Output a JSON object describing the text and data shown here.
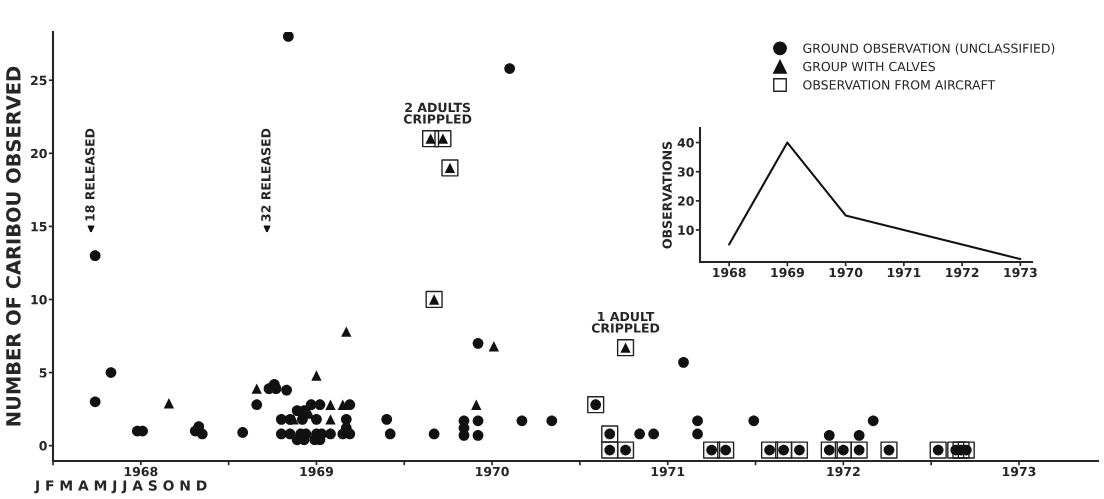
{
  "chart_data": [
    {
      "type": "scatter",
      "ylabel": "NUMBER OF CARIBOU OBSERVED",
      "xlim": [
        1968,
        1973.95
      ],
      "ylim": [
        -1.05,
        28.3
      ],
      "xticks": [
        {
          "value": 1968,
          "label": null
        },
        {
          "value": 1968.5,
          "label": "1968"
        },
        {
          "value": 1969,
          "label": null
        },
        {
          "value": 1969.5,
          "label": "1969"
        },
        {
          "value": 1970,
          "label": null
        },
        {
          "value": 1970.5,
          "label": "1970"
        },
        {
          "value": 1971,
          "label": null
        },
        {
          "value": 1971.5,
          "label": "1971"
        },
        {
          "value": 1972,
          "label": null
        },
        {
          "value": 1972.5,
          "label": "1972"
        },
        {
          "value": 1973,
          "label": null
        },
        {
          "value": 1973.5,
          "label": "1973"
        }
      ],
      "yticks": [
        0,
        5,
        10,
        15,
        20,
        25
      ],
      "grid": false,
      "legend": "top right",
      "series": [
        {
          "name": "GROUND OBSERVATION (UNCLASSIFIED)",
          "color": "#111111",
          "marker": "circle",
          "x": [
            1968.24,
            1968.33,
            1968.24,
            1968.48,
            1968.51,
            1968.81,
            1968.83,
            1968.85,
            1969.08,
            1969.16,
            1969.23,
            1969.26,
            1969.27,
            1969.33,
            1969.34,
            1969.3,
            1969.35,
            1969.42,
            1969.5,
            1969.67,
            1969.9,
            1969.39,
            1969.43,
            1969.3,
            1969.35,
            1969.41,
            1969.44,
            1969.5,
            1969.53,
            1969.58,
            1969.65,
            1969.69,
            1969.92,
            1969.39,
            1969.43,
            1969.49,
            1969.52,
            1969.47,
            1969.52,
            1969.69,
            1969.67,
            1970.17,
            1970.34,
            1970.34,
            1970.34,
            1970.42,
            1970.42,
            1970.42,
            1970.6,
            1970.67,
            1970.84,
            1971.59,
            1971.34,
            1971.42,
            1971.67,
            1971.67,
            1971.99,
            1972.42,
            1972.59,
            1972.67,
            1971.09,
            1971.17,
            1971.17,
            1971.26,
            1971.75,
            1971.83,
            1972.08,
            1972.16,
            1972.25,
            1972.42,
            1972.5,
            1972.59,
            1972.76,
            1973.04,
            1973.14,
            1973.17,
            1973.2
          ],
          "values": [
            13,
            5,
            3,
            1,
            1,
            1,
            1.3,
            0.8,
            0.9,
            2.8,
            3.9,
            4.2,
            3.9,
            3.8,
            28,
            1.8,
            1.8,
            1.8,
            1.8,
            1.8,
            1.8,
            2.4,
            2.4,
            0.8,
            0.8,
            0.8,
            0.8,
            0.8,
            0.8,
            0.8,
            0.8,
            0.8,
            0.8,
            0.4,
            0.4,
            0.4,
            0.4,
            2.8,
            2.8,
            2.8,
            1.2,
            0.8,
            1.7,
            1.2,
            0.7,
            1.7,
            0.7,
            7,
            25.8,
            1.7,
            1.7,
            5.7,
            0.8,
            0.8,
            1.7,
            0.8,
            1.7,
            0.7,
            0.7,
            1.7,
            2.8,
            0.8,
            -0.3,
            -0.3,
            -0.3,
            -0.3,
            -0.3,
            -0.3,
            -0.3,
            -0.3,
            -0.3,
            -0.3,
            -0.3,
            -0.3,
            -0.3,
            -0.3,
            -0.3
          ]
        },
        {
          "name": "GROUP WITH CALVES",
          "color": "#111111",
          "marker": "triangle",
          "x": [
            1968.66,
            1969.16,
            1969.37,
            1969.46,
            1969.5,
            1969.58,
            1969.58,
            1969.65,
            1969.67,
            1970.41,
            1970.51,
            1970.17,
            1970.15,
            1970.22,
            1970.26,
            1971.26
          ],
          "values": [
            2.9,
            3.9,
            1.8,
            2.2,
            4.8,
            2.8,
            1.8,
            2.8,
            7.8,
            2.8,
            6.8,
            10,
            21,
            21,
            19,
            6.7
          ]
        },
        {
          "name": "OBSERVATION FROM AIRCRAFT",
          "color": "#222222",
          "marker": "square",
          "x": [
            1970.17,
            1970.15,
            1970.22,
            1970.26,
            1971.26,
            1971.09,
            1971.17,
            1971.17,
            1971.26,
            1971.75,
            1971.83,
            1972.08,
            1972.16,
            1972.25,
            1972.42,
            1972.5,
            1972.59,
            1972.76,
            1973.04,
            1973.14,
            1973.17,
            1973.2
          ],
          "values": [
            10,
            21,
            21,
            19,
            6.7,
            2.8,
            0.8,
            -0.3,
            -0.3,
            -0.3,
            -0.3,
            -0.3,
            -0.3,
            -0.3,
            -0.3,
            -0.3,
            -0.3,
            -0.3,
            -0.3,
            -0.3,
            -0.3,
            -0.3
          ]
        }
      ],
      "annotations": [
        "18 RELEASED",
        "32 RELEASED",
        {
          "text": "2 ADULTS\nCRIPPLED",
          "x": 1970.19,
          "y": 21
        },
        {
          "text": "1 ADULT\nCRIPPLED",
          "x": 1971.26,
          "y": 6.7
        },
        "J F M A M J J A S O N D"
      ]
    },
    {
      "type": "line",
      "ylabel": "OBSERVATIONS",
      "x": [
        1968,
        1969,
        1970,
        1971,
        1972,
        1973
      ],
      "values": [
        5,
        40,
        15,
        10,
        5,
        0
      ],
      "color": "#111111",
      "xlim": [
        1967.5,
        1973.2
      ],
      "ylim": [
        -1,
        45
      ],
      "xticks": [
        1968,
        1969,
        1970,
        1971,
        1972,
        1973
      ],
      "yticks": [
        10,
        20,
        30,
        40
      ],
      "grid": false
    }
  ]
}
